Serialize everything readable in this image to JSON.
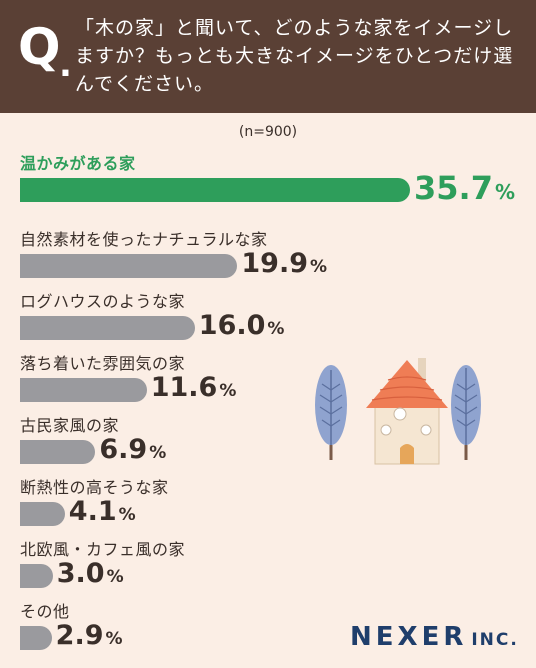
{
  "header": {
    "q_letter": "Q",
    "q_dot": ".",
    "question": "「木の家」と聞いて、どのような家をイメージしますか？もっとも大きなイメージをひとつだけ選んでください。"
  },
  "sample_note": "(n=900)",
  "colors": {
    "header_bg": "#5a4035",
    "page_bg": "#fbeee5",
    "top_bar": "#2e9e5b",
    "bar": "#9a9a9e",
    "logo": "#1f3e6b"
  },
  "chart_data": {
    "type": "bar",
    "orientation": "horizontal",
    "categories": [
      "温かみがある家",
      "自然素材を使ったナチュラルな家",
      "ログハウスのような家",
      "落ち着いた雰囲気の家",
      "古民家風の家",
      "断熱性の高そうな家",
      "北欧風・カフェ風の家",
      "その他"
    ],
    "values": [
      35.7,
      19.9,
      16.0,
      11.6,
      6.9,
      4.1,
      3.0,
      2.9
    ],
    "value_labels": [
      "35.7",
      "19.9",
      "16.0",
      "11.6",
      "6.9",
      "4.1",
      "3.0",
      "2.9"
    ],
    "unit": "%",
    "highlight_index": 0
  },
  "logo": {
    "name": "NEXER",
    "suffix": "INC."
  },
  "illustration_icons": [
    "tree-icon",
    "house-icon",
    "tree-icon"
  ]
}
